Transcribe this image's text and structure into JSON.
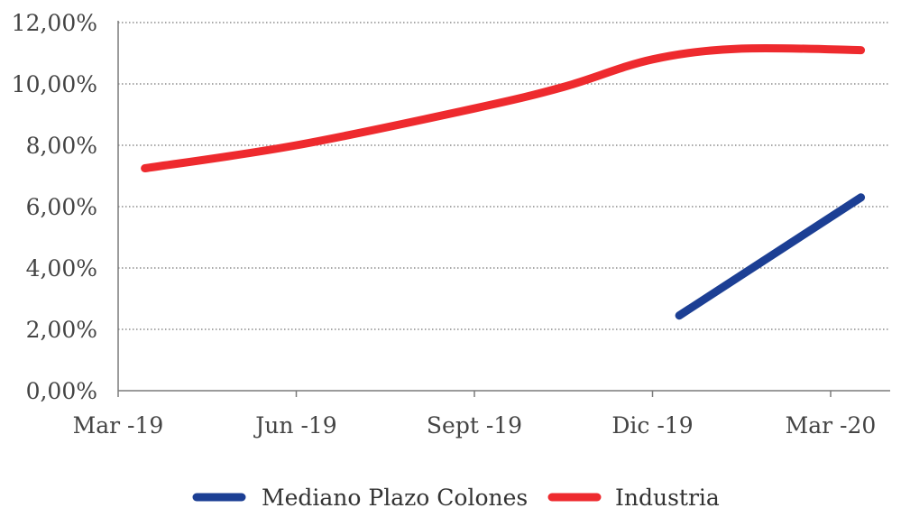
{
  "chart_data": {
    "type": "line",
    "title": "",
    "xlabel": "",
    "ylabel": "",
    "categories": [
      "Mar -19",
      "Jun -19",
      "Sept -19",
      "Dic -19",
      "Mar -20"
    ],
    "y_ticks": [
      "0,00%",
      "2,00%",
      "4,00%",
      "6,00%",
      "8,00%",
      "10,00%",
      "12,00%"
    ],
    "ylim": [
      0,
      12
    ],
    "grid": true,
    "legend_position": "bottom",
    "series": [
      {
        "name": "Mediano Plazo Colones",
        "color": "#1c3f94",
        "points": [
          {
            "x": 3.15,
            "y": 2.45
          },
          {
            "x": 4.17,
            "y": 6.3
          }
        ]
      },
      {
        "name": "Industria",
        "color": "#ee2a2e",
        "points": [
          {
            "x": 0.15,
            "y": 7.25
          },
          {
            "x": 1.0,
            "y": 8.0
          },
          {
            "x": 2.0,
            "y": 9.2
          },
          {
            "x": 2.5,
            "y": 9.9
          },
          {
            "x": 3.0,
            "y": 10.8
          },
          {
            "x": 3.5,
            "y": 11.15
          },
          {
            "x": 4.17,
            "y": 11.1
          }
        ]
      }
    ]
  }
}
